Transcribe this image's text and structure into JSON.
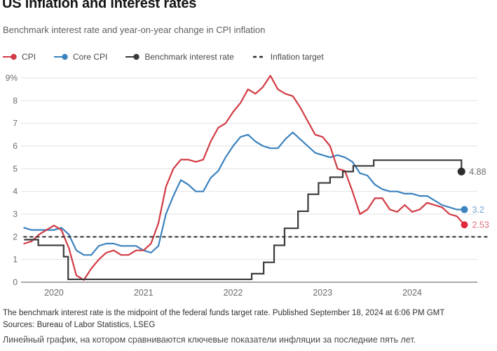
{
  "header": {
    "title": "US inflation and interest rates",
    "subtitle": "Benchmark interest rate and year-on-year change in CPI inflation"
  },
  "legend": {
    "items": [
      {
        "label": "CPI",
        "color": "#d23b44",
        "type": "line-dot"
      },
      {
        "label": "Core CPI",
        "color": "#3c82bd",
        "type": "line-dot"
      },
      {
        "label": "Benchmark interest rate",
        "color": "#3a3a3a",
        "type": "line-dot"
      },
      {
        "label": "Inflation target",
        "color": "#2f2f2f",
        "type": "dashed"
      }
    ]
  },
  "chart_data": {
    "type": "line",
    "title": "US inflation and interest rates",
    "xlabel": "",
    "ylabel": "",
    "y_unit": "%",
    "ylim": [
      0,
      9
    ],
    "grid": "horizontal",
    "legend_position": "top",
    "start_month": "2019-09",
    "y_ticks": [
      {
        "value": 0,
        "label": "0"
      },
      {
        "value": 1,
        "label": "1"
      },
      {
        "value": 2,
        "label": "2"
      },
      {
        "value": 3,
        "label": "3"
      },
      {
        "value": 4,
        "label": "4"
      },
      {
        "value": 5,
        "label": "5"
      },
      {
        "value": 6,
        "label": "6"
      },
      {
        "value": 7,
        "label": "7"
      },
      {
        "value": 8,
        "label": "8"
      },
      {
        "value": 9,
        "label": "9%"
      }
    ],
    "x_ticks": [
      {
        "label": "2020",
        "month": 4
      },
      {
        "label": "2021",
        "month": 16
      },
      {
        "label": "2022",
        "month": 28
      },
      {
        "label": "2023",
        "month": 40
      },
      {
        "label": "2024",
        "month": 52
      }
    ],
    "series": [
      {
        "name": "Core CPI",
        "color": "#3c82bd",
        "kind": "monthly",
        "values": [
          2.4,
          2.3,
          2.3,
          2.3,
          2.3,
          2.4,
          2.1,
          1.4,
          1.2,
          1.2,
          1.6,
          1.7,
          1.7,
          1.6,
          1.6,
          1.6,
          1.4,
          1.3,
          1.6,
          3.0,
          3.8,
          4.5,
          4.3,
          4.0,
          4.0,
          4.6,
          4.9,
          5.5,
          6.0,
          6.4,
          6.5,
          6.2,
          6.0,
          5.9,
          5.9,
          6.3,
          6.6,
          6.3,
          6.0,
          5.7,
          5.6,
          5.5,
          5.6,
          5.5,
          5.3,
          4.8,
          4.7,
          4.3,
          4.1,
          4.0,
          4.0,
          3.9,
          3.9,
          3.8,
          3.8,
          3.6,
          3.4,
          3.3,
          3.2,
          3.2
        ]
      },
      {
        "name": "CPI",
        "color": "#d23b44",
        "kind": "monthly",
        "values": [
          1.7,
          1.8,
          2.1,
          2.3,
          2.5,
          2.3,
          1.5,
          0.3,
          0.1,
          0.6,
          1.0,
          1.3,
          1.4,
          1.2,
          1.2,
          1.4,
          1.4,
          1.7,
          2.6,
          4.2,
          5.0,
          5.4,
          5.4,
          5.3,
          5.4,
          6.2,
          6.8,
          7.0,
          7.5,
          7.9,
          8.5,
          8.3,
          8.6,
          9.1,
          8.5,
          8.3,
          8.2,
          7.7,
          7.1,
          6.5,
          6.4,
          6.0,
          5.0,
          4.9,
          4.0,
          3.0,
          3.2,
          3.7,
          3.7,
          3.2,
          3.1,
          3.4,
          3.1,
          3.2,
          3.5,
          3.4,
          3.3,
          3.0,
          2.9,
          2.53
        ]
      },
      {
        "name": "Benchmark interest rate",
        "color": "#3a3a3a",
        "kind": "step",
        "steps": [
          [
            0,
            1.875
          ],
          [
            1.9,
            1.625
          ],
          [
            5.3,
            1.125
          ],
          [
            5.9,
            0.125
          ],
          [
            30.5,
            0.375
          ],
          [
            32.1,
            0.875
          ],
          [
            33.5,
            1.625
          ],
          [
            34.9,
            2.375
          ],
          [
            36.7,
            3.125
          ],
          [
            38.05,
            3.875
          ],
          [
            39.45,
            4.375
          ],
          [
            41.0,
            4.625
          ],
          [
            42.7,
            4.875
          ],
          [
            44.1,
            5.125
          ],
          [
            46.85,
            5.375
          ],
          [
            58.6,
            4.875
          ]
        ]
      }
    ],
    "target": {
      "label": "Inflation target",
      "value": 2
    },
    "end_markers": [
      {
        "series": "Benchmark interest rate",
        "label": "4.88",
        "month": 58.6,
        "value": 4.875,
        "dot_color": "#2d2d2d",
        "text_color": "#6f6f6f"
      },
      {
        "series": "Core CPI",
        "label": "3.2",
        "month": 59,
        "value": 3.2,
        "dot_color": "#3c82bd",
        "text_color": "#74a5d5"
      },
      {
        "series": "CPI",
        "label": "2.53",
        "month": 59,
        "value": 2.53,
        "dot_color": "#e02a3c",
        "text_color": "#de707a"
      }
    ]
  },
  "footer": {
    "note": "The benchmark interest rate is the midpoint of the federal funds target rate. Published September 18, 2024 at 6:06 PM GMT",
    "sources": "Sources: Bureau of Labor Statistics, LSEG"
  },
  "caption": "Линейный график, на котором сравниваются ключевые показатели инфляции за последние пять лет."
}
